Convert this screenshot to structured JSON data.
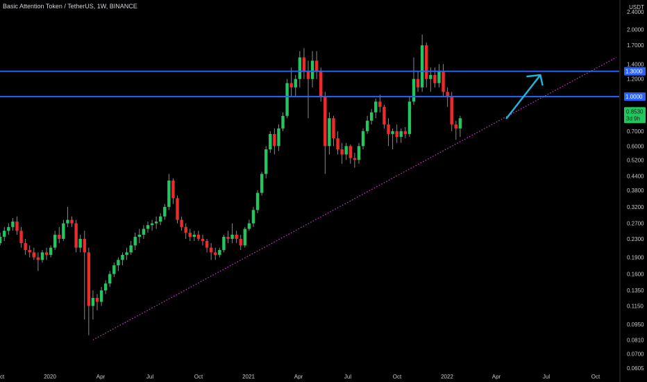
{
  "chart_data": {
    "type": "candlestick",
    "title": "Basic Attention Token / TetherUS, 1W, BINANCE",
    "y_scale": "log",
    "y_unit": "USDT",
    "ylim": [
      0.0605,
      2.6
    ],
    "y_ticks": [
      "2.4000",
      "2.0000",
      "1.7000",
      "1.4000",
      "1.2000",
      "1.0000",
      "0.8530",
      "0.7000",
      "0.6000",
      "0.5200",
      "0.4400",
      "0.3800",
      "0.3200",
      "0.2700",
      "0.2300",
      "0.1900",
      "0.1600",
      "0.1350",
      "0.1150",
      "0.0950",
      "0.0810",
      "0.0700",
      "0.0605"
    ],
    "x_ticks": [
      "Oct",
      "2020",
      "Apr",
      "Jul",
      "Oct",
      "2021",
      "Apr",
      "Jul",
      "Oct",
      "2022",
      "Apr",
      "Jul",
      "Oct"
    ],
    "horizontal_levels": [
      {
        "value": 1.3,
        "label": "1.3000",
        "color": "#2962ff"
      },
      {
        "value": 1.0,
        "label": "1.0000",
        "color": "#2962ff"
      }
    ],
    "current_price": {
      "value": 0.853,
      "label": "0.8530",
      "countdown": "3d 9h",
      "color": "#22c55e"
    },
    "trendline": {
      "style": "dotted",
      "color": "#d63cd6",
      "from": {
        "week": 24,
        "price": 0.081
      },
      "to": {
        "week": 148,
        "price": 1.5
      }
    },
    "arrow": {
      "color": "#1fb5d8",
      "from": {
        "week": 122,
        "price": 0.8
      },
      "to": {
        "week": 130,
        "price": 1.25
      }
    },
    "weeks_start": "2019-09",
    "candles": [
      [
        0.2,
        0.22,
        0.19,
        0.21
      ],
      [
        0.21,
        0.23,
        0.2,
        0.22
      ],
      [
        0.22,
        0.245,
        0.215,
        0.235
      ],
      [
        0.235,
        0.26,
        0.225,
        0.25
      ],
      [
        0.25,
        0.27,
        0.24,
        0.26
      ],
      [
        0.26,
        0.285,
        0.25,
        0.275
      ],
      [
        0.275,
        0.29,
        0.24,
        0.25
      ],
      [
        0.25,
        0.26,
        0.21,
        0.22
      ],
      [
        0.22,
        0.23,
        0.195,
        0.205
      ],
      [
        0.205,
        0.215,
        0.19,
        0.2
      ],
      [
        0.2,
        0.21,
        0.185,
        0.19
      ],
      [
        0.19,
        0.2,
        0.165,
        0.185
      ],
      [
        0.185,
        0.205,
        0.18,
        0.2
      ],
      [
        0.2,
        0.21,
        0.185,
        0.195
      ],
      [
        0.195,
        0.215,
        0.19,
        0.21
      ],
      [
        0.21,
        0.25,
        0.205,
        0.24
      ],
      [
        0.24,
        0.26,
        0.22,
        0.23
      ],
      [
        0.23,
        0.28,
        0.225,
        0.27
      ],
      [
        0.27,
        0.32,
        0.26,
        0.28
      ],
      [
        0.28,
        0.29,
        0.26,
        0.27
      ],
      [
        0.27,
        0.28,
        0.2,
        0.21
      ],
      [
        0.21,
        0.24,
        0.2,
        0.23
      ],
      [
        0.23,
        0.25,
        0.1,
        0.2
      ],
      [
        0.2,
        0.21,
        0.085,
        0.115
      ],
      [
        0.115,
        0.135,
        0.1,
        0.125
      ],
      [
        0.125,
        0.13,
        0.11,
        0.12
      ],
      [
        0.12,
        0.14,
        0.115,
        0.135
      ],
      [
        0.135,
        0.15,
        0.13,
        0.145
      ],
      [
        0.145,
        0.165,
        0.14,
        0.16
      ],
      [
        0.16,
        0.18,
        0.155,
        0.175
      ],
      [
        0.175,
        0.19,
        0.165,
        0.185
      ],
      [
        0.185,
        0.2,
        0.175,
        0.195
      ],
      [
        0.195,
        0.21,
        0.185,
        0.2
      ],
      [
        0.2,
        0.225,
        0.195,
        0.215
      ],
      [
        0.215,
        0.245,
        0.205,
        0.235
      ],
      [
        0.235,
        0.255,
        0.22,
        0.24
      ],
      [
        0.24,
        0.265,
        0.23,
        0.255
      ],
      [
        0.255,
        0.275,
        0.245,
        0.265
      ],
      [
        0.265,
        0.28,
        0.25,
        0.27
      ],
      [
        0.27,
        0.29,
        0.255,
        0.275
      ],
      [
        0.275,
        0.3,
        0.265,
        0.29
      ],
      [
        0.29,
        0.33,
        0.28,
        0.32
      ],
      [
        0.32,
        0.45,
        0.31,
        0.42
      ],
      [
        0.42,
        0.43,
        0.33,
        0.35
      ],
      [
        0.35,
        0.36,
        0.27,
        0.28
      ],
      [
        0.28,
        0.29,
        0.25,
        0.26
      ],
      [
        0.26,
        0.27,
        0.23,
        0.245
      ],
      [
        0.245,
        0.255,
        0.225,
        0.235
      ],
      [
        0.235,
        0.25,
        0.225,
        0.24
      ],
      [
        0.24,
        0.25,
        0.225,
        0.23
      ],
      [
        0.23,
        0.24,
        0.215,
        0.225
      ],
      [
        0.225,
        0.23,
        0.2,
        0.21
      ],
      [
        0.21,
        0.22,
        0.185,
        0.2
      ],
      [
        0.2,
        0.21,
        0.185,
        0.195
      ],
      [
        0.195,
        0.21,
        0.19,
        0.205
      ],
      [
        0.205,
        0.24,
        0.2,
        0.235
      ],
      [
        0.235,
        0.25,
        0.22,
        0.23
      ],
      [
        0.23,
        0.27,
        0.22,
        0.24
      ],
      [
        0.24,
        0.25,
        0.22,
        0.23
      ],
      [
        0.23,
        0.24,
        0.205,
        0.215
      ],
      [
        0.215,
        0.26,
        0.21,
        0.255
      ],
      [
        0.255,
        0.28,
        0.25,
        0.27
      ],
      [
        0.27,
        0.32,
        0.26,
        0.31
      ],
      [
        0.31,
        0.38,
        0.3,
        0.37
      ],
      [
        0.37,
        0.46,
        0.36,
        0.45
      ],
      [
        0.45,
        0.6,
        0.43,
        0.58
      ],
      [
        0.58,
        0.7,
        0.56,
        0.68
      ],
      [
        0.68,
        0.72,
        0.55,
        0.6
      ],
      [
        0.6,
        0.75,
        0.57,
        0.72
      ],
      [
        0.72,
        0.85,
        0.7,
        0.82
      ],
      [
        0.82,
        1.2,
        0.8,
        1.15
      ],
      [
        1.15,
        1.35,
        1.0,
        1.1
      ],
      [
        1.1,
        1.25,
        1.0,
        1.2
      ],
      [
        1.2,
        1.6,
        1.1,
        1.5
      ],
      [
        1.5,
        1.65,
        1.2,
        1.3
      ],
      [
        1.3,
        1.45,
        0.8,
        1.2
      ],
      [
        1.2,
        1.6,
        1.1,
        1.45
      ],
      [
        1.45,
        1.6,
        1.2,
        1.3
      ],
      [
        1.3,
        1.35,
        0.95,
        1.0
      ],
      [
        1.0,
        1.05,
        0.45,
        0.6
      ],
      [
        0.6,
        0.85,
        0.55,
        0.8
      ],
      [
        0.8,
        0.82,
        0.6,
        0.65
      ],
      [
        0.65,
        0.7,
        0.55,
        0.58
      ],
      [
        0.58,
        0.62,
        0.5,
        0.55
      ],
      [
        0.55,
        0.62,
        0.52,
        0.6
      ],
      [
        0.6,
        0.61,
        0.5,
        0.53
      ],
      [
        0.53,
        0.56,
        0.48,
        0.52
      ],
      [
        0.52,
        0.62,
        0.5,
        0.6
      ],
      [
        0.6,
        0.72,
        0.58,
        0.7
      ],
      [
        0.7,
        0.82,
        0.68,
        0.78
      ],
      [
        0.78,
        0.88,
        0.75,
        0.85
      ],
      [
        0.85,
        0.98,
        0.8,
        0.95
      ],
      [
        0.95,
        1.02,
        0.85,
        0.9
      ],
      [
        0.9,
        0.92,
        0.72,
        0.75
      ],
      [
        0.75,
        0.8,
        0.6,
        0.68
      ],
      [
        0.68,
        0.72,
        0.58,
        0.7
      ],
      [
        0.7,
        0.75,
        0.62,
        0.66
      ],
      [
        0.66,
        0.72,
        0.62,
        0.7
      ],
      [
        0.7,
        0.73,
        0.65,
        0.68
      ],
      [
        0.68,
        1.0,
        0.66,
        0.95
      ],
      [
        0.95,
        1.5,
        0.92,
        1.2
      ],
      [
        1.2,
        1.3,
        1.05,
        1.1
      ],
      [
        1.1,
        1.9,
        1.05,
        1.7
      ],
      [
        1.7,
        1.75,
        1.1,
        1.2
      ],
      [
        1.2,
        1.35,
        1.05,
        1.25
      ],
      [
        1.25,
        1.35,
        1.1,
        1.15
      ],
      [
        1.15,
        1.4,
        1.1,
        1.3
      ],
      [
        1.3,
        1.4,
        1.0,
        1.05
      ],
      [
        1.05,
        1.1,
        0.9,
        1.0
      ],
      [
        1.0,
        1.05,
        0.7,
        0.75
      ],
      [
        0.75,
        0.78,
        0.64,
        0.72
      ],
      [
        0.72,
        0.82,
        0.66,
        0.8
      ]
    ]
  }
}
